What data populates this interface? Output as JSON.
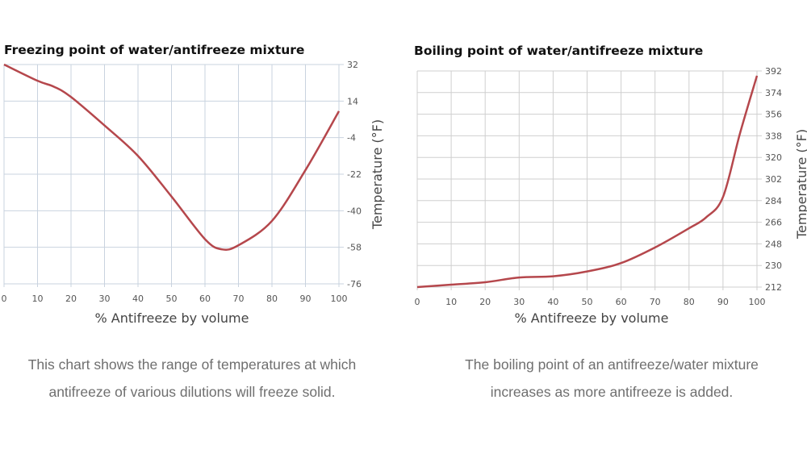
{
  "chart_data": [
    {
      "type": "line",
      "title": "Freezing point of water/antifreeze mixture",
      "xlabel": "% Antifreeze by volume",
      "ylabel": "Temperature (°F)",
      "xlim": [
        0,
        100
      ],
      "ylim": [
        -76,
        32
      ],
      "xticks": [
        "0",
        "10",
        "20",
        "30",
        "40",
        "50",
        "60",
        "70",
        "80",
        "90",
        "100"
      ],
      "yticks": [
        "32",
        "14",
        "-4",
        "-22",
        "-40",
        "-58",
        "-76"
      ],
      "y_axis_side": "right",
      "grid": true,
      "line_color": "#b5474c",
      "x": [
        0,
        10,
        15,
        20,
        30,
        40,
        50,
        60,
        65,
        70,
        80,
        90,
        100
      ],
      "y": [
        32,
        24,
        21,
        16,
        2,
        -13,
        -33,
        -54,
        -59,
        -57,
        -45,
        -20,
        9
      ]
    },
    {
      "type": "line",
      "title": "Boiling point of water/antifreeze mixture",
      "xlabel": "% Antifreeze by volume",
      "ylabel": "Temperature (°F)",
      "xlim": [
        0,
        100
      ],
      "ylim": [
        212,
        392
      ],
      "xticks": [
        "0",
        "10",
        "20",
        "30",
        "40",
        "50",
        "60",
        "70",
        "80",
        "90",
        "100"
      ],
      "yticks": [
        "392",
        "374",
        "356",
        "338",
        "320",
        "302",
        "284",
        "266",
        "248",
        "230",
        "212"
      ],
      "y_axis_side": "right",
      "grid": true,
      "line_color": "#b5474c",
      "x": [
        0,
        10,
        20,
        30,
        40,
        50,
        60,
        70,
        80,
        85,
        90,
        95,
        100
      ],
      "y": [
        212,
        214,
        216,
        220,
        221,
        225,
        232,
        245,
        261,
        270,
        287,
        340,
        388
      ]
    }
  ],
  "captions": {
    "left": "This chart shows the range of temperatures at which antifreeze of various dilutions will freeze solid.",
    "right": "The boiling point of an antifreeze/water mixture increases as more antifreeze is added."
  }
}
